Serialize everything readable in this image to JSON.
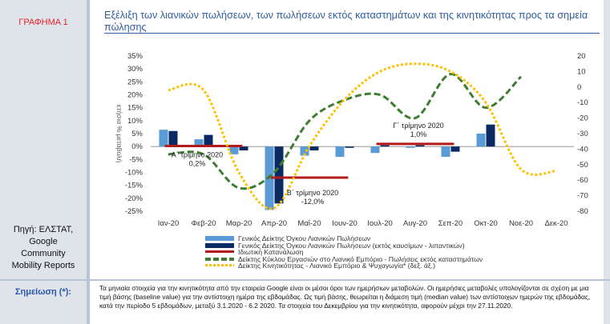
{
  "figure_label": "ΓΡΑΦΗΜΑ 1",
  "title": "Εξέλιξη των λιανικών πωλήσεων, των πωλήσεων εκτός καταστημάτων και της κινητικότητας προς τα σημεία πώλησης",
  "source_lines": [
    "Πηγή: ΕΛΣΤΑΤ,",
    "Google",
    "Community",
    "Mobility Reports"
  ],
  "note_label": "Σημείωση (*):",
  "note_text": "Τα μηνιαία στοιχεία για την κινητικότητα από την εταιρεία Google είναι οι μέσοι όροι των ημερήσιων μεταβολών. Οι ημερήσιες μεταβολές υπολογίζονται σε σχέση με μια τιμή βάσης (baseline value) για την αντίστοιχη ημέρα της εβδομάδας. Ως τιμή βάσης, θεωρείται η διάμεση τιμή (median value) των αντίστοιχων ημερών της εβδομάδας, κατά την περίοδο 5 εβδομάδων, μεταξύ 3.1.2020 - 6.2 2020. Τα στοιχεία του Δεκεμβρίου για την κινητικότητα, αφορούν μέχρι την 27.11.2020.",
  "colors": {
    "bar1": "#5b9bd5",
    "bar2": "#0b2a63",
    "consumption": "#b31b1b",
    "green": "#3e7d32",
    "mobility": "#ffc000"
  },
  "chart_data": {
    "type": "bar",
    "categories": [
      "Ιαν-20",
      "Φεβ-20",
      "Μαρ-20",
      "Απρ-20",
      "Μαΐ-20",
      "Ιουν-20",
      "Ιουλ-20",
      "Αυγ-20",
      "Σεπ-20",
      "Οκτ-20",
      "Νοε-20",
      "Δεκ-20"
    ],
    "ylim": [
      -25,
      35
    ],
    "y2lim": [
      -80,
      20
    ],
    "yticks": [
      "35%",
      "30%",
      "25%",
      "20%",
      "15%",
      "10%",
      "5%",
      "0%",
      "-5%",
      "-10%",
      "-15%",
      "-20%",
      "-25%"
    ],
    "y2ticks": [
      "20",
      "10",
      "0",
      "-10",
      "-20",
      "-30",
      "-40",
      "-50",
      "-60",
      "-70",
      "-80"
    ],
    "ylabel": "ετήσια % μεταβολή",
    "series": [
      {
        "name": "Γενικός Δείκτης Όγκου Λιανικών Πωλήσεων",
        "kind": "bar",
        "values": [
          6.5,
          2.8,
          -3.0,
          -24.5,
          -3.5,
          -4.0,
          -2.5,
          -0.5,
          -4.0,
          5.0,
          null,
          null
        ]
      },
      {
        "name": "Γενικός Δείκτης Όγκου Λιανικών Πωλήσεων (εκτός καυσίμων - λιπαντικών)",
        "kind": "bar",
        "values": [
          6.0,
          4.5,
          -1.5,
          -22.0,
          -1.5,
          -0.5,
          0.5,
          0.5,
          -2.0,
          8.5,
          null,
          null
        ]
      },
      {
        "name": "Ιδιωτική Κατανάλωση",
        "kind": "step",
        "segments": [
          {
            "from": 0,
            "to": 2,
            "value": 0.2
          },
          {
            "from": 3,
            "to": 5,
            "value": -12.0
          },
          {
            "from": 6,
            "to": 8,
            "value": 1.0
          }
        ]
      },
      {
        "name": "Δείκτης Κύκλου Εργασιών στο Λιανικό Εμπόριο - Πωλήσεις εκτός καταστημάτων",
        "kind": "line",
        "axis": "y",
        "values": [
          -3,
          -3,
          -16,
          -10,
          10,
          18,
          20,
          11,
          28,
          15,
          27,
          null
        ]
      },
      {
        "name": "Δείκτης Κινητικότητας - Λιανικό Εμπόριο & Ψυχαγωγία* (δεξ. άξ.)",
        "kind": "line",
        "axis": "y2",
        "values": [
          -2,
          -2,
          -55,
          -78,
          -38,
          -8,
          10,
          15,
          10,
          -10,
          -53,
          -54
        ]
      }
    ],
    "annotations": [
      {
        "lines": [
          "Α΄ τρίμηνο 2020",
          "0,2%"
        ]
      },
      {
        "lines": [
          "Β΄ τρίμηνο 2020",
          "-12,0%"
        ]
      },
      {
        "lines": [
          "Γ΄ τρίμηνο 2020",
          "1,0%"
        ]
      }
    ]
  }
}
